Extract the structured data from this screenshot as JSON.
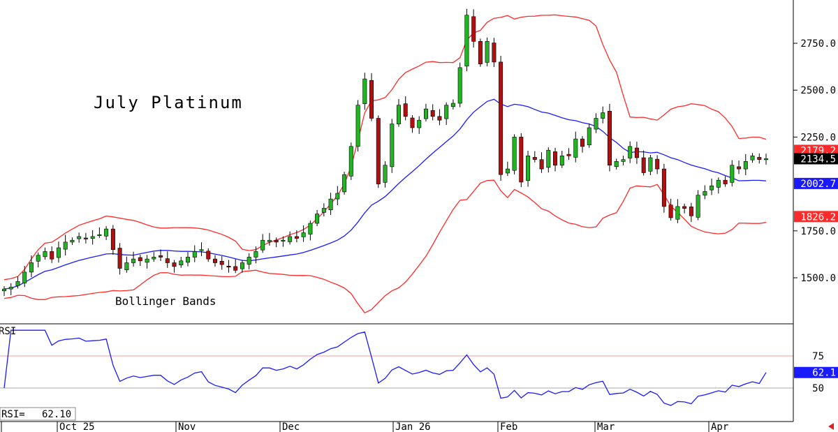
{
  "chart_data": {
    "type": "candlestick",
    "title": "July Platinum",
    "annotation": "Bollinger Bands",
    "x_labels": [
      "Oct 25",
      "Nov",
      "Dec",
      "Jan 26",
      "Feb",
      "Mar",
      "Apr"
    ],
    "price_axis": {
      "ticks": [
        "2750.0",
        "2500.0",
        "2250.0",
        "1750.0",
        "1500.0"
      ],
      "ylim": [
        1305,
        2960
      ]
    },
    "price_tags": [
      {
        "label": "2179.2",
        "color": "#ff2a2a",
        "text_color": "#ffffff",
        "meaning": "upper band"
      },
      {
        "label": "2134.5",
        "color": "#000000",
        "text_color": "#ffffff",
        "meaning": "last close"
      },
      {
        "label": "2002.7",
        "color": "#1a1aff",
        "text_color": "#ffffff",
        "meaning": "middle band"
      },
      {
        "label": "1826.2",
        "color": "#ff2a2a",
        "text_color": "#ffffff",
        "meaning": "lower band"
      }
    ],
    "closes": [
      1440,
      1450,
      1480,
      1530,
      1580,
      1620,
      1640,
      1600,
      1660,
      1690,
      1700,
      1720,
      1710,
      1720,
      1730,
      1760,
      1650,
      1550,
      1580,
      1600,
      1590,
      1600,
      1610,
      1610,
      1580,
      1560,
      1590,
      1610,
      1640,
      1650,
      1600,
      1580,
      1570,
      1560,
      1540,
      1580,
      1610,
      1640,
      1700,
      1700,
      1690,
      1700,
      1720,
      1710,
      1740,
      1790,
      1840,
      1870,
      1920,
      1950,
      2050,
      2200,
      2420,
      2560,
      2350,
      2000,
      2100,
      2320,
      2420,
      2360,
      2300,
      2340,
      2400,
      2360,
      2340,
      2420,
      2430,
      2620,
      2900,
      2760,
      2640,
      2760,
      2650,
      2050,
      2080,
      2250,
      2010,
      2150,
      2130,
      2080,
      2180,
      2100,
      2150,
      2150,
      2240,
      2200,
      2300,
      2350,
      2380,
      2100,
      2120,
      2130,
      2200,
      2140,
      2060,
      2140,
      2080,
      1880,
      1820,
      1880,
      1870,
      1830,
      1940,
      1960,
      1990,
      2020,
      2000,
      2100,
      2080,
      2120,
      2150,
      2130,
      2134.5
    ],
    "bollinger": {
      "upper_last": 2179.2,
      "middle_last": 2002.7,
      "lower_last": 1826.2
    },
    "rsi": {
      "label": "RSI",
      "value_label": "RSI=",
      "value": "62.10",
      "tag": "62.1",
      "ticks": [
        "75",
        "50"
      ],
      "ylim": [
        10,
        100
      ],
      "overbought_line": 75,
      "midline": 50
    },
    "colors": {
      "up": "#22b422",
      "down": "#b01010",
      "band": "#ff2a2a",
      "middle": "#1a1aff",
      "rsi": "#1a1aff",
      "grid_ref": "#ff9999"
    }
  }
}
